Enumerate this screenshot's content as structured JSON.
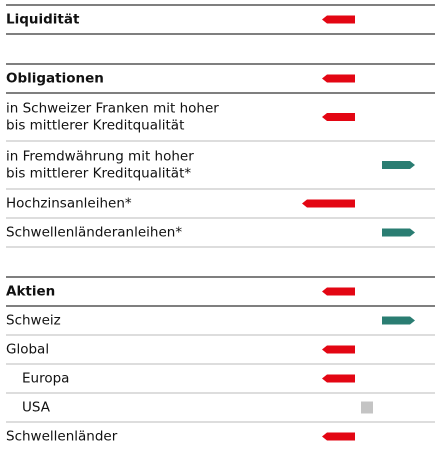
{
  "colors": {
    "negative": "#e30613",
    "positive": "#2a7d72",
    "neutral": "#c4c4c4"
  },
  "groups": [
    {
      "rows": [
        {
          "label": [
            "Liquidität"
          ],
          "position": -1,
          "heading": true
        }
      ]
    },
    {
      "rows": [
        {
          "label": [
            "Obligationen"
          ],
          "position": -1,
          "heading": true
        },
        {
          "label": [
            "in Schweizer Franken mit hoher",
            "bis mittlerer Kreditqualität"
          ],
          "position": -1
        },
        {
          "label": [
            "in Fremdwährung mit hoher",
            "bis mittlerer Kreditqualität*"
          ],
          "position": 1
        },
        {
          "label": [
            "Hochzinsanleihen*"
          ],
          "position": -2
        },
        {
          "label": [
            "Schwellenländeranleihen*"
          ],
          "position": 1
        }
      ]
    },
    {
      "rows": [
        {
          "label": [
            "Aktien"
          ],
          "position": -1,
          "heading": true
        },
        {
          "label": [
            "Schweiz"
          ],
          "position": 1
        },
        {
          "label": [
            "Global"
          ],
          "position": -1
        },
        {
          "label": [
            "Europa"
          ],
          "position": -1,
          "indent": 1
        },
        {
          "label": [
            "USA"
          ],
          "position": 0,
          "indent": 1
        },
        {
          "label": [
            "Schwellenländer"
          ],
          "position": -1
        }
      ]
    }
  ]
}
